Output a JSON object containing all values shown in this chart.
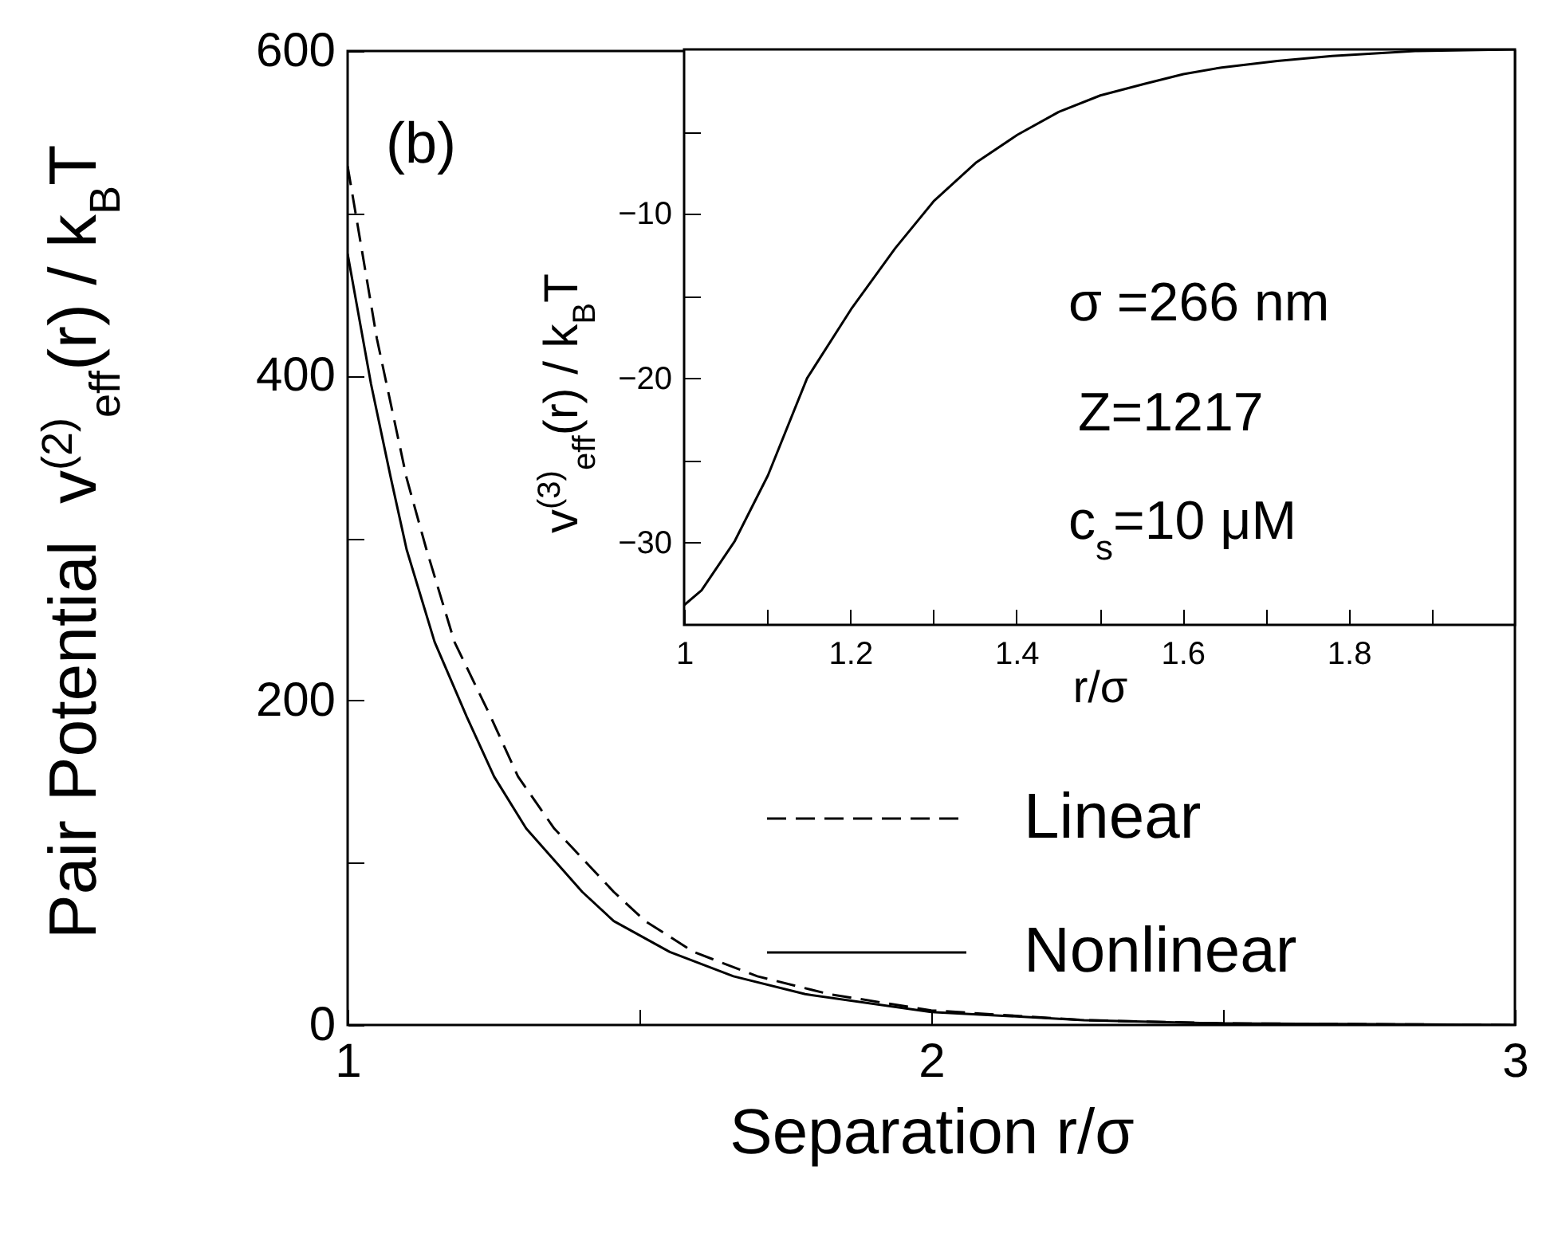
{
  "chart_data": [
    {
      "type": "line",
      "xlabel": "Separation  r/σ",
      "ylabel": "Pair Potential  v$^{(2)}$$_{eff}$(r) / k$_{B}$T",
      "annotations": [
        "(b)"
      ],
      "xlim": [
        1,
        3
      ],
      "ylim": [
        0,
        600
      ],
      "xticks": [
        1,
        {
          "value": 1.5,
          "label": null
        },
        2,
        {
          "value": 2.5,
          "label": null
        },
        3
      ],
      "yticks": [
        0,
        {
          "value": 100,
          "label": null
        },
        200,
        {
          "value": 300,
          "label": null
        },
        400,
        {
          "value": 500,
          "label": null
        },
        600
      ],
      "legend": "bottom right",
      "series": [
        {
          "name": "Linear",
          "color": "#000000",
          "line_style": "dashed",
          "x": [
            1.0,
            1.05,
            1.101,
            1.135,
            1.183,
            1.245,
            1.292,
            1.354,
            1.456,
            1.51,
            1.593,
            1.702,
            1.825,
            2.0,
            2.262,
            2.5,
            3.0
          ],
          "values": [
            529,
            423,
            337,
            293,
            236,
            190,
            153,
            121,
            82,
            64,
            45,
            30,
            19,
            9,
            3,
            1,
            0
          ]
        },
        {
          "name": "Nonlinear",
          "color": "#000000",
          "line_style": "solid",
          "x": [
            1.0,
            1.04,
            1.074,
            1.101,
            1.149,
            1.204,
            1.251,
            1.306,
            1.402,
            1.456,
            1.552,
            1.661,
            1.784,
            2.0,
            2.262,
            2.494,
            3.0
          ],
          "values": [
            475,
            395,
            337,
            293,
            236,
            190,
            153,
            121,
            82,
            64,
            45,
            30,
            19,
            8,
            3,
            1,
            0
          ]
        }
      ]
    },
    {
      "type": "line",
      "xlabel": "r/σ",
      "ylabel": "v$^{(3)}$$_{eff}$(r) / k$_{B}$T",
      "annotations": [
        "σ =266 nm",
        "Z=1217",
        "c$_{s}$=10 μM"
      ],
      "xlim": [
        1,
        2
      ],
      "ylim": [
        -35,
        0
      ],
      "xticks": [
        1,
        {
          "value": 1.1,
          "label": null
        },
        1.2,
        {
          "value": 1.3,
          "label": null
        },
        1.4,
        {
          "value": 1.5,
          "label": null
        },
        1.6,
        {
          "value": 1.7,
          "label": null
        },
        1.8,
        {
          "value": 1.9,
          "label": null
        }
      ],
      "yticks": [
        {
          "value": -5,
          "label": null
        },
        -10,
        {
          "value": -15,
          "label": null
        },
        -20,
        {
          "value": -25,
          "label": null
        },
        -30
      ],
      "series": [
        {
          "color": "#000000",
          "line_style": "solid",
          "x": [
            1.0,
            1.021,
            1.061,
            1.101,
            1.148,
            1.201,
            1.254,
            1.301,
            1.351,
            1.401,
            1.451,
            1.501,
            1.554,
            1.601,
            1.647,
            1.714,
            1.78,
            1.88,
            2.0
          ],
          "values": [
            -33.8,
            -32.9,
            -29.9,
            -25.9,
            -20.0,
            -15.8,
            -12.1,
            -9.2,
            -6.9,
            -5.2,
            -3.8,
            -2.8,
            -2.1,
            -1.5,
            -1.1,
            -0.7,
            -0.4,
            -0.1,
            0
          ]
        }
      ]
    }
  ]
}
